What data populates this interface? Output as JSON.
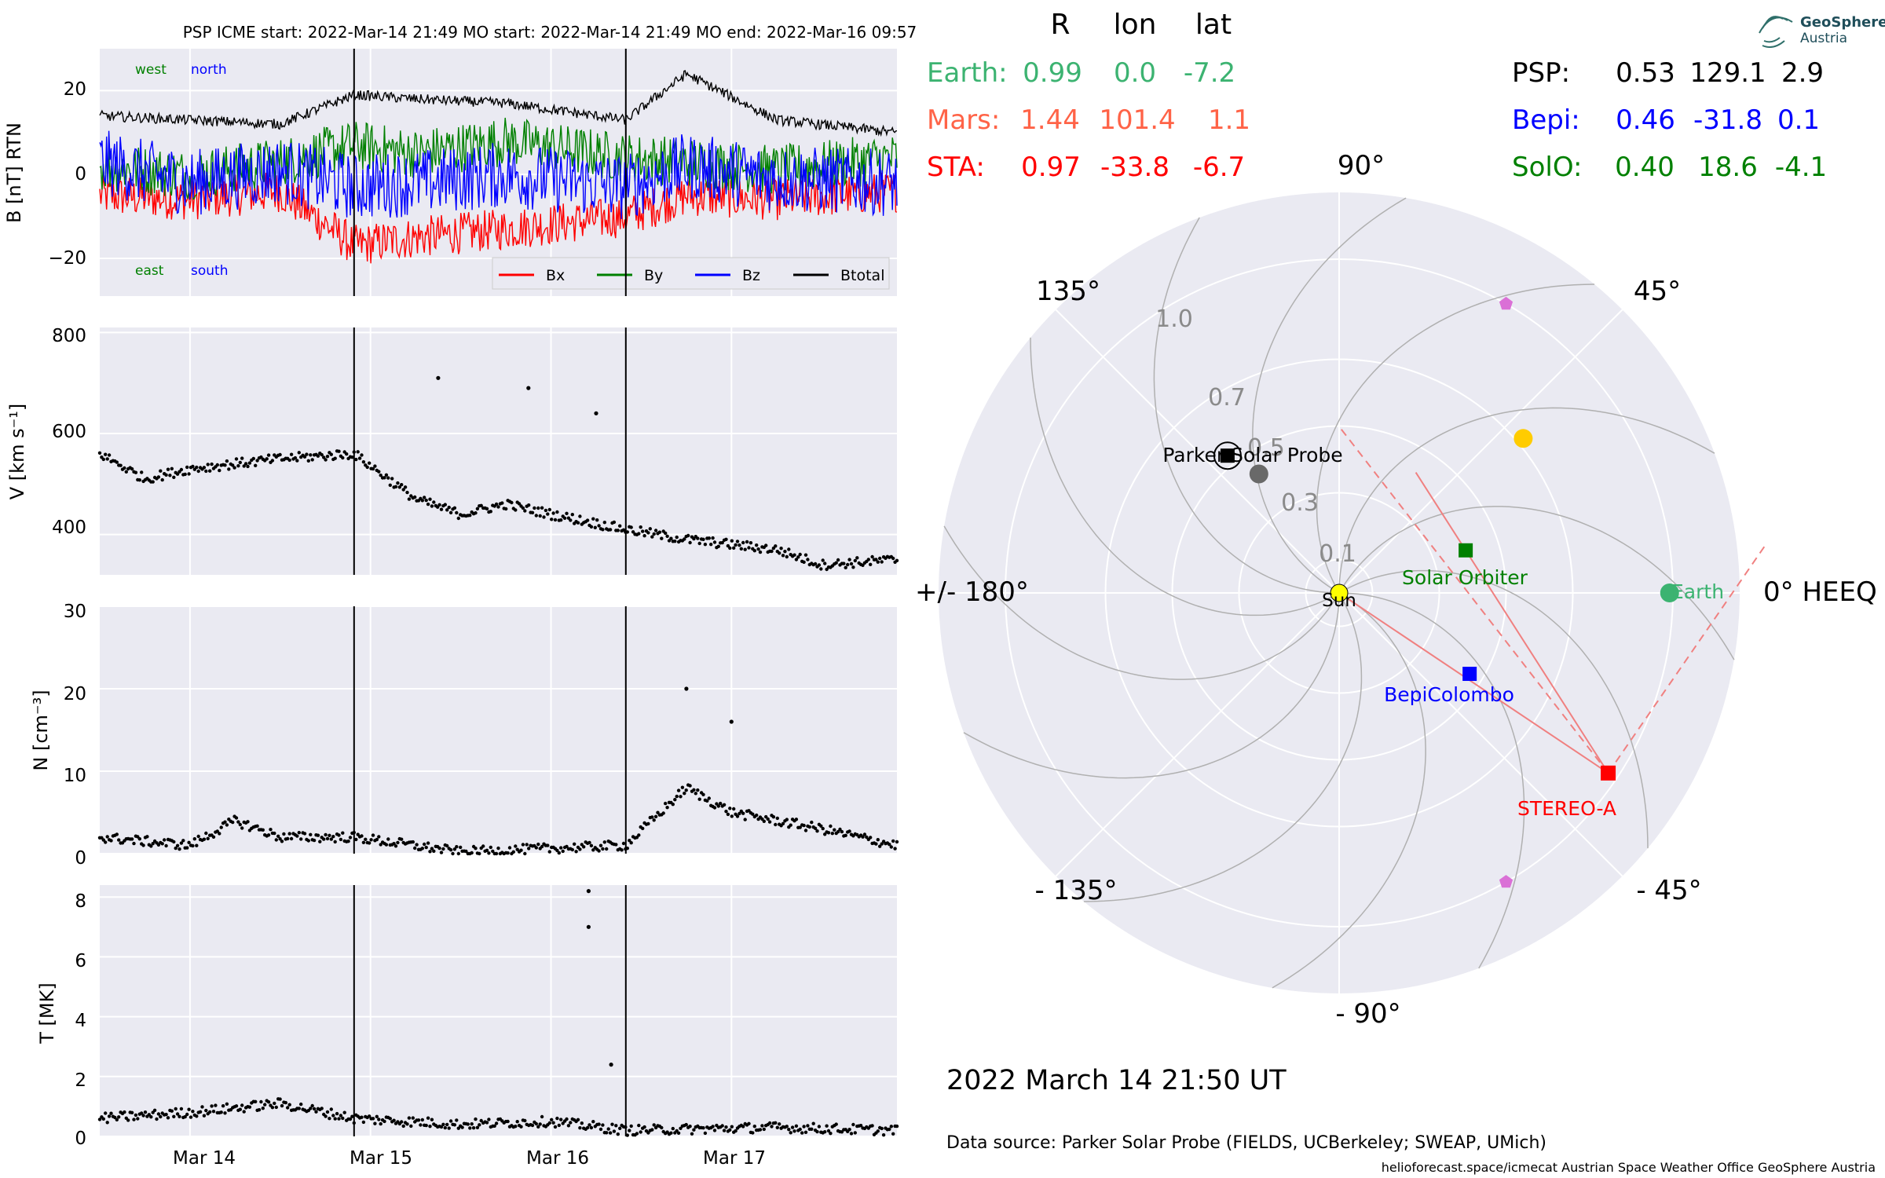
{
  "colors": {
    "panel_bg": "#eaeaf2",
    "grid": "#ffffff",
    "bx": "#ff0000",
    "by": "#008000",
    "bz": "#0000ff",
    "btotal": "#000000",
    "earth": "#3cb371",
    "mars": "#ff6347",
    "sta": "#ff0000",
    "psp": "#000000",
    "bepi": "#0000ff",
    "solo": "#008000",
    "sun": "#ffff00",
    "mercury": "#696969",
    "venus": "#ffcc00",
    "l5l4": "#da70d6",
    "fieldline": "#b0b0b0",
    "sta_line": "#f08080"
  },
  "left": {
    "title": "PSP    ICME start: 2022-Mar-14 21:49   MO start: 2022-Mar-14 21:49   MO end: 2022-Mar-16 09:57",
    "date_labels": [
      "Mar 14",
      "Mar 15",
      "Mar 16",
      "Mar 17"
    ],
    "panels": [
      {
        "ylabel": "B [nT] RTN",
        "ticks": [
          "20",
          "0",
          "−20"
        ],
        "ann_west": "west",
        "ann_north": "north",
        "ann_east": "east",
        "ann_south": "south",
        "legend": [
          "Bx",
          "By",
          "Bz",
          "Btotal"
        ]
      },
      {
        "ylabel": "V [km s⁻¹]",
        "ticks": [
          "800",
          "600",
          "400"
        ]
      },
      {
        "ylabel": "N [cm⁻³]",
        "ticks": [
          "30",
          "20",
          "10",
          "0"
        ]
      },
      {
        "ylabel": "T [MK]",
        "ticks": [
          "8",
          "6",
          "4",
          "2",
          "0"
        ]
      }
    ]
  },
  "right": {
    "header": {
      "R": "R",
      "lon": "lon",
      "lat": "lat"
    },
    "rows_left": [
      {
        "name": "Earth:",
        "r": "0.99",
        "lon": "0.0",
        "lat": "-7.2",
        "color": "#3cb371"
      },
      {
        "name": "Mars:",
        "r": "1.44",
        "lon": "101.4",
        "lat": "1.1",
        "color": "#ff6347"
      },
      {
        "name": "STA:",
        "r": "0.97",
        "lon": "-33.8",
        "lat": "-6.7",
        "color": "#ff0000"
      }
    ],
    "rows_right": [
      {
        "name": "PSP:",
        "r": "0.53",
        "lon": "129.1",
        "lat": "2.9",
        "color": "#000000"
      },
      {
        "name": "Bepi:",
        "r": "0.46",
        "lon": "-31.8",
        "lat": "0.1",
        "color": "#0000ff"
      },
      {
        "name": "SolO:",
        "r": "0.40",
        "lon": "18.6",
        "lat": "-4.1",
        "color": "#008000"
      }
    ],
    "logo_line1": "GeoSphere",
    "logo_line2": "Austria",
    "angle_labels": {
      "a90": "90°",
      "a45": "45°",
      "a135": "135°",
      "a0": "0° HEEQ",
      "a180": "+/- 180°",
      "am45": "- 45°",
      "am135": "- 135°",
      "am90": "- 90°"
    },
    "radial_labels": [
      "1.0",
      "0.7",
      "0.5",
      "0.3",
      "0.1"
    ],
    "body_labels": {
      "psp": "Parker Solar Probe",
      "sun": "Sun",
      "solo": "Solar Orbiter",
      "earth": "Earth",
      "bepi": "BepiColombo",
      "sta": "STEREO-A"
    },
    "date": "2022 March 14  21:50 UT",
    "source": "Data source: Parker Solar Probe (FIELDS, UCBerkeley; SWEAP, UMich)",
    "footer": "helioforecast.space/icmecat   Austrian Space Weather Office   GeoSphere Austria"
  },
  "chart_data": [
    {
      "type": "line",
      "title": "PSP    ICME start: 2022-Mar-14 21:49   MO start: 2022-Mar-14 21:49   MO end: 2022-Mar-16 09:57",
      "ylabel": "B [nT] RTN",
      "ylim": [
        -29,
        30
      ],
      "x_range": [
        "2022-03-13T12:00",
        "2022-03-17T22:00"
      ],
      "vlines": [
        "2022-03-14T21:49",
        "2022-03-16T09:57"
      ],
      "series": [
        {
          "name": "Bx",
          "x": [
            "2022-03-13T12:00",
            "2022-03-14T00:00",
            "2022-03-14T12:00",
            "2022-03-14T21:49",
            "2022-03-15T06:00",
            "2022-03-15T18:00",
            "2022-03-16T09:57",
            "2022-03-16T18:00",
            "2022-03-17T06:00",
            "2022-03-17T22:00"
          ],
          "values": [
            -5,
            -6,
            -4,
            -17,
            -15,
            -13,
            -10,
            -5,
            -6,
            -4
          ]
        },
        {
          "name": "By",
          "x": [
            "2022-03-13T12:00",
            "2022-03-14T00:00",
            "2022-03-14T12:00",
            "2022-03-14T21:49",
            "2022-03-15T06:00",
            "2022-03-15T18:00",
            "2022-03-16T09:57",
            "2022-03-16T18:00",
            "2022-03-17T06:00",
            "2022-03-17T22:00"
          ],
          "values": [
            2,
            0,
            3,
            7,
            5,
            8,
            4,
            3,
            1,
            4
          ]
        },
        {
          "name": "Bz",
          "x": [
            "2022-03-13T12:00",
            "2022-03-14T00:00",
            "2022-03-14T12:00",
            "2022-03-14T21:49",
            "2022-03-15T06:00",
            "2022-03-15T18:00",
            "2022-03-16T09:57",
            "2022-03-16T18:00",
            "2022-03-17T06:00",
            "2022-03-17T22:00"
          ],
          "values": [
            3,
            -2,
            1,
            -3,
            -2,
            0,
            -3,
            2,
            -1,
            -2
          ]
        },
        {
          "name": "Btotal",
          "x": [
            "2022-03-13T12:00",
            "2022-03-14T00:00",
            "2022-03-14T12:00",
            "2022-03-14T21:49",
            "2022-03-15T06:00",
            "2022-03-15T18:00",
            "2022-03-16T09:57",
            "2022-03-16T18:00",
            "2022-03-17T06:00",
            "2022-03-17T22:00"
          ],
          "values": [
            14,
            13,
            12,
            19,
            18,
            17,
            13,
            24,
            13,
            10
          ]
        }
      ]
    },
    {
      "type": "scatter",
      "ylabel": "V [km s⁻¹]",
      "ylim": [
        320,
        810
      ],
      "x": [
        "2022-03-13T12:00",
        "2022-03-13T18:00",
        "2022-03-14T00:00",
        "2022-03-14T12:00",
        "2022-03-14T21:49",
        "2022-03-15T06:00",
        "2022-03-15T12:00",
        "2022-03-15T18:00",
        "2022-03-16T00:00",
        "2022-03-16T09:57",
        "2022-03-16T18:00",
        "2022-03-17T06:00",
        "2022-03-17T12:00",
        "2022-03-17T22:00"
      ],
      "values": [
        560,
        510,
        530,
        550,
        560,
        470,
        440,
        460,
        440,
        410,
        390,
        370,
        340,
        350
      ],
      "spikes": [
        {
          "x": "2022-03-15T09:00",
          "y": 710
        },
        {
          "x": "2022-03-15T21:00",
          "y": 690
        },
        {
          "x": "2022-03-16T06:00",
          "y": 640
        }
      ]
    },
    {
      "type": "scatter",
      "ylabel": "N [cm⁻³]",
      "ylim": [
        0,
        30
      ],
      "x": [
        "2022-03-13T12:00",
        "2022-03-14T00:00",
        "2022-03-14T06:00",
        "2022-03-14T12:00",
        "2022-03-14T21:49",
        "2022-03-15T12:00",
        "2022-03-16T09:57",
        "2022-03-16T18:00",
        "2022-03-17T00:00",
        "2022-03-17T12:00",
        "2022-03-17T22:00"
      ],
      "values": [
        2,
        1,
        4,
        2,
        2,
        0.2,
        1,
        8,
        5,
        3,
        1
      ],
      "spikes": [
        {
          "x": "2022-03-16T18:00",
          "y": 20
        },
        {
          "x": "2022-03-17T00:00",
          "y": 16
        }
      ]
    },
    {
      "type": "scatter",
      "ylabel": "T [MK]",
      "ylim": [
        0,
        8.4
      ],
      "x": [
        "2022-03-13T12:00",
        "2022-03-14T00:00",
        "2022-03-14T12:00",
        "2022-03-14T21:49",
        "2022-03-15T12:00",
        "2022-03-16T00:00",
        "2022-03-16T09:57",
        "2022-03-17T06:00",
        "2022-03-17T22:00"
      ],
      "values": [
        0.6,
        0.8,
        1.1,
        0.6,
        0.4,
        0.5,
        0.2,
        0.3,
        0.2
      ],
      "spikes": [
        {
          "x": "2022-03-16T05:00",
          "y": 8.2
        },
        {
          "x": "2022-03-16T05:00",
          "y": 7.0
        },
        {
          "x": "2022-03-16T08:00",
          "y": 2.4
        }
      ]
    },
    {
      "type": "scatter",
      "title": "2022 March 14  21:50 UT",
      "projection": "polar HEEQ, r in AU, r max 1.2",
      "points": [
        {
          "name": "Sun",
          "r": 0.0,
          "lon": 0.0
        },
        {
          "name": "Earth",
          "r": 0.99,
          "lon": 0.0
        },
        {
          "name": "STEREO-A",
          "r": 0.97,
          "lon": -33.8
        },
        {
          "name": "Parker Solar Probe",
          "r": 0.53,
          "lon": 129.1
        },
        {
          "name": "BepiColombo",
          "r": 0.46,
          "lon": -31.8
        },
        {
          "name": "Solar Orbiter",
          "r": 0.4,
          "lon": 18.6
        },
        {
          "name": "mercury",
          "r": 0.43,
          "lon": 124
        },
        {
          "name": "venus",
          "r": 0.72,
          "lon": 40
        },
        {
          "name": "L4",
          "r": 1.0,
          "lon": 60
        },
        {
          "name": "L5",
          "r": 1.0,
          "lon": -60
        }
      ]
    }
  ]
}
